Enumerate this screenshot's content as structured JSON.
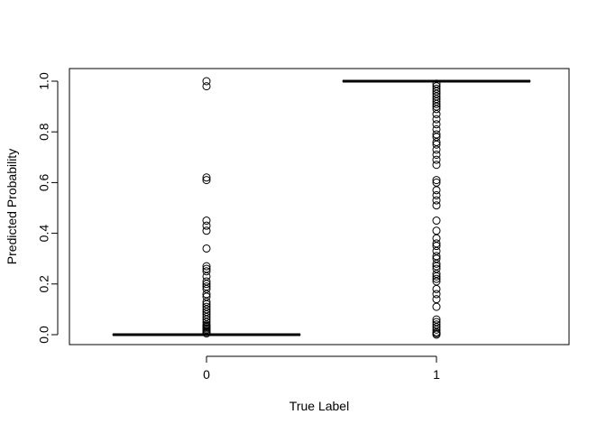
{
  "chart_data": {
    "type": "boxplot",
    "title": "",
    "xlabel": "True Label",
    "ylabel": "Predicted Probability",
    "categories": [
      "0",
      "1"
    ],
    "ylim": [
      -0.04,
      1.04
    ],
    "yticks": [
      0.0,
      0.2,
      0.4,
      0.6,
      0.8,
      1.0
    ],
    "ytick_labels": [
      "0.0",
      "0.2",
      "0.4",
      "0.6",
      "0.8",
      "1.0"
    ],
    "grid": false,
    "legend": "none",
    "boxes": [
      {
        "label": "0",
        "median": 0.0,
        "q1": 0.0,
        "q3": 0.0,
        "outliers": [
          1.0,
          0.98,
          0.62,
          0.61,
          0.45,
          0.43,
          0.41,
          0.34,
          0.27,
          0.26,
          0.25,
          0.23,
          0.21,
          0.2,
          0.19,
          0.18,
          0.16,
          0.15,
          0.13,
          0.12,
          0.11,
          0.1,
          0.09,
          0.08,
          0.07,
          0.06,
          0.05,
          0.04,
          0.035,
          0.03,
          0.025,
          0.02,
          0.015,
          0.01,
          0.005
        ]
      },
      {
        "label": "1",
        "median": 1.0,
        "q1": 1.0,
        "q3": 1.0,
        "outliers": [
          0.99,
          0.98,
          0.97,
          0.96,
          0.95,
          0.94,
          0.93,
          0.92,
          0.91,
          0.9,
          0.89,
          0.87,
          0.85,
          0.83,
          0.81,
          0.79,
          0.78,
          0.76,
          0.75,
          0.73,
          0.71,
          0.69,
          0.67,
          0.61,
          0.6,
          0.57,
          0.55,
          0.53,
          0.51,
          0.45,
          0.41,
          0.38,
          0.36,
          0.35,
          0.33,
          0.31,
          0.3,
          0.28,
          0.27,
          0.26,
          0.24,
          0.23,
          0.22,
          0.21,
          0.18,
          0.16,
          0.14,
          0.11,
          0.06,
          0.05,
          0.04,
          0.03,
          0.02,
          0.01,
          0.005,
          0.0
        ]
      }
    ]
  }
}
